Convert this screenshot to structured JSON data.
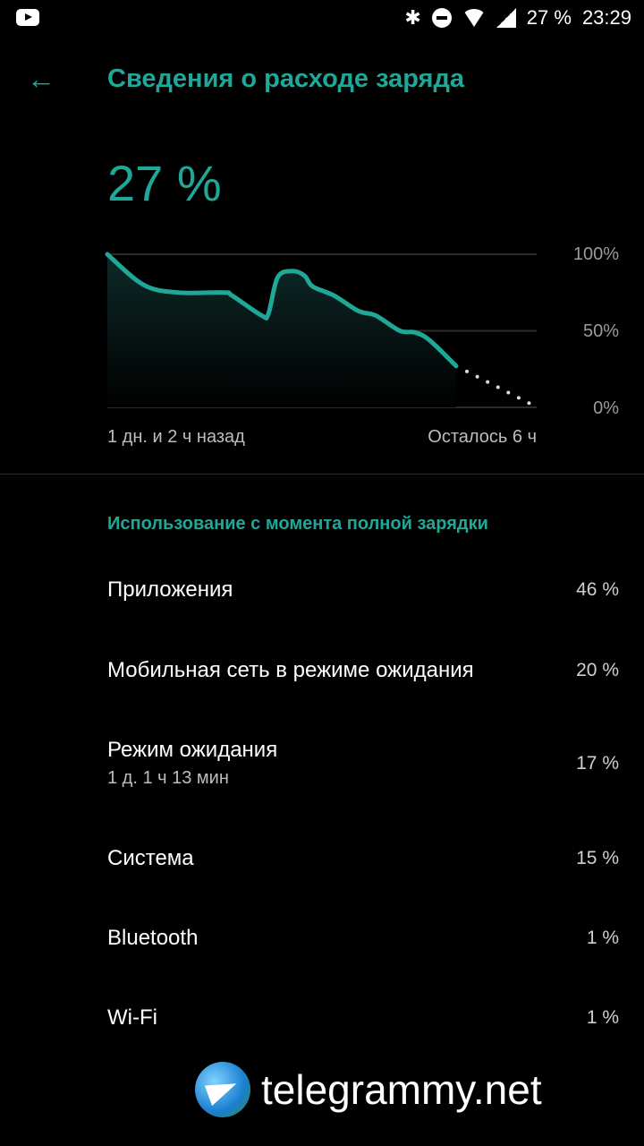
{
  "status_bar": {
    "battery": "27 %",
    "time": "23:29",
    "icons": [
      "youtube-icon",
      "bluetooth-icon",
      "do-not-disturb-icon",
      "wifi-icon",
      "signal-icon"
    ]
  },
  "header": {
    "title": "Сведения о расходе заряда",
    "back_icon": "arrow-left-icon"
  },
  "battery_level": "27 %",
  "chart_data": {
    "type": "line",
    "xlim": [
      -26,
      6
    ],
    "ylim": [
      0,
      100
    ],
    "ytick_labels": [
      "100%",
      "50%",
      "0%"
    ],
    "yticks": [
      100,
      50,
      0
    ],
    "grid": true,
    "x_start_label": "1 дн. и 2 ч назад",
    "x_end_label": "Осталось 6 ч",
    "accent_color": "#1fa898",
    "series": [
      {
        "style": "solid",
        "x": [
          -26,
          -23.3,
          -20.7,
          -17.3,
          -16.7,
          -14.5,
          -14,
          -13.3,
          -12.2,
          -11.3,
          -10.7,
          -9.1,
          -7.3,
          -6,
          -4.2,
          -3.1,
          -2,
          0
        ],
        "y": [
          100,
          80,
          75,
          75,
          73,
          60,
          61,
          85,
          89,
          86,
          79,
          73,
          63,
          60,
          50,
          49,
          44,
          27
        ]
      },
      {
        "style": "dotted",
        "x": [
          0,
          5.6
        ],
        "y": [
          27,
          2
        ]
      }
    ]
  },
  "usage": {
    "section_title": "Использование с момента полной зарядки",
    "items": [
      {
        "label": "Приложения",
        "value": "46 %"
      },
      {
        "label": "Мобильная сеть в режиме ожидания",
        "value": "20 %"
      },
      {
        "label": "Режим ожидания",
        "sub": "1 д. 1 ч 13 мин",
        "value": "17 %"
      },
      {
        "label": "Система",
        "value": "15 %"
      },
      {
        "label": "Bluetooth",
        "value": "1 %"
      },
      {
        "label": "Wi-Fi",
        "value": "1 %"
      }
    ]
  },
  "watermark": "telegrammy.net"
}
